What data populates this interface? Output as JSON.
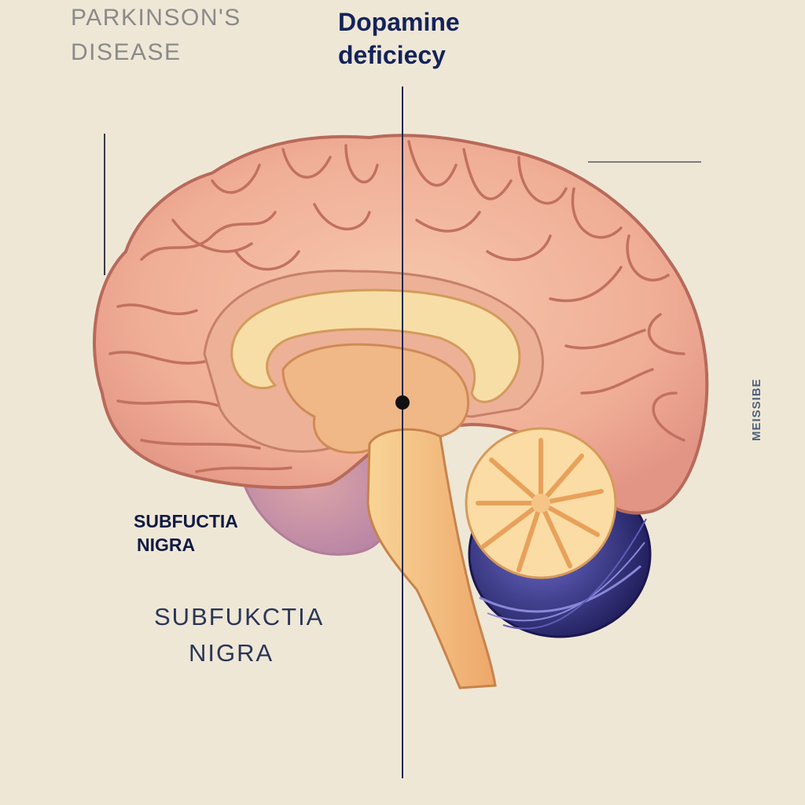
{
  "title": {
    "line1": "PARKINSON'S",
    "line2": "DISEASE"
  },
  "heading": {
    "line1": "Dopamine",
    "line2": "deficiecy"
  },
  "labels": {
    "substantia_small_line1": "SUBFUCTIA",
    "substantia_small_line2": "NIGRA",
    "substantia_large_line1": "SUBFUKCTIA",
    "substantia_large_line2": "NIGRA",
    "side_text": "MEISSIBE"
  },
  "colors": {
    "background": "#efe7d6",
    "cortex": "#f3b9a0",
    "cortex_outline": "#c0705a",
    "corpus_callosum": "#f8e1a6",
    "brainstem": "#f4c27e",
    "cerebellum_dark": "#3b3a8a",
    "arbor_vitae": "#fbdca4",
    "heading_text": "#13235a"
  }
}
